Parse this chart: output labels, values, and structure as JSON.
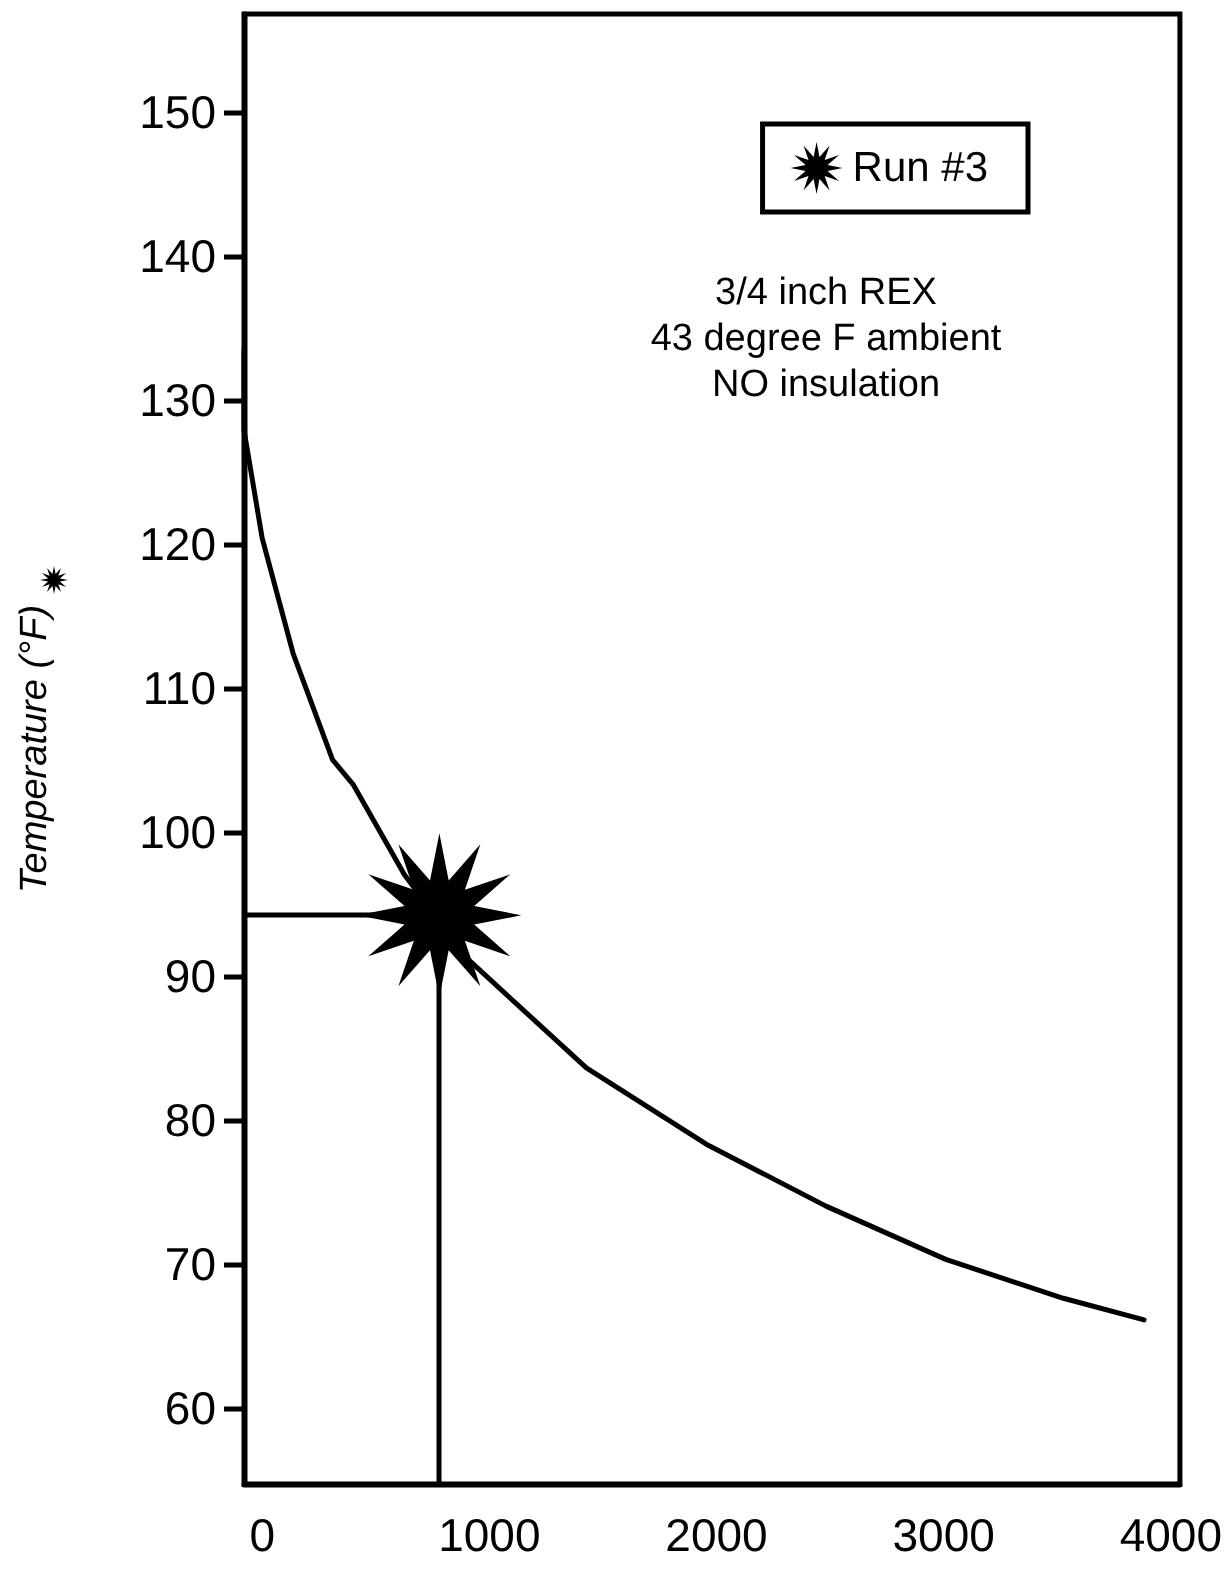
{
  "chart_data": {
    "type": "line",
    "ylabel": "Temperature (°F)",
    "annotations": [
      "3/4 inch REX\n43 degree F ambient\nNO insulation"
    ],
    "xlim": [
      -80,
      4040
    ],
    "xticks": [
      0,
      1000,
      2000,
      3000,
      4000
    ],
    "ylim": [
      54.7,
      156.8
    ],
    "yticks": [
      60,
      70,
      80,
      90,
      100,
      110,
      120,
      130,
      140,
      150
    ],
    "series": [
      {
        "color": "#000000",
        "x": [
          -80,
          -80,
          0,
          136,
          310,
          400,
          627,
          909,
          1427,
          1955,
          2482,
          3009,
          3527,
          3882
        ],
        "values": [
          133.5,
          127.9,
          120.4,
          112.4,
          105,
          103.3,
          97,
          91.1,
          83.6,
          78.3,
          74,
          70.3,
          67.6,
          66.1
        ],
        "marker": "none"
      },
      {
        "type": "scatter",
        "name": "Run #3",
        "color": "#000000",
        "x": [
          780
        ],
        "values": [
          94.2
        ],
        "marker": "star"
      }
    ],
    "ref_lines": [
      {
        "axis": "x",
        "value": 780,
        "color": "#000000"
      },
      {
        "axis": "y",
        "value": 94.2,
        "color": "#000000"
      }
    ],
    "legend": "top right",
    "grid": false
  }
}
